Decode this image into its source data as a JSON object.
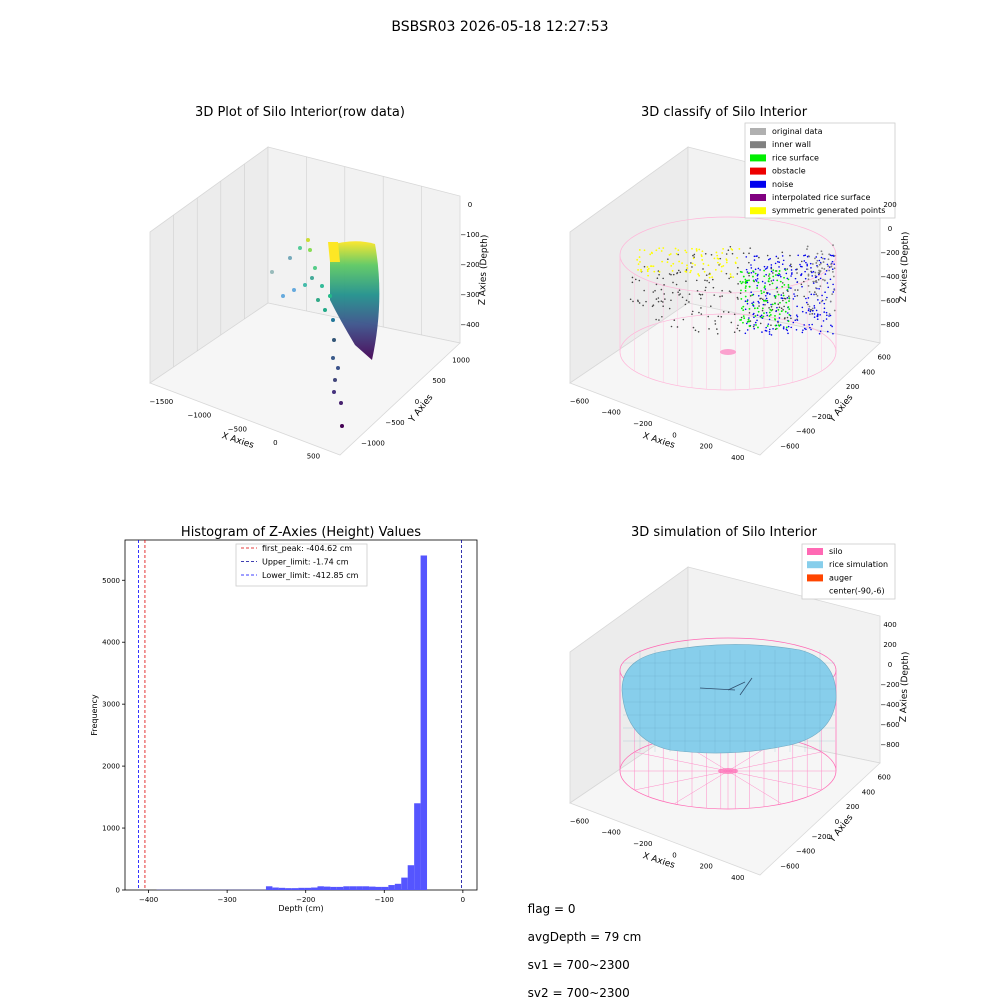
{
  "suptitle": "BSBSR03 2026-05-18 12:27:53",
  "status_bar": {
    "flag": "flag = 0",
    "avg_depth": "avgDepth = 79 cm",
    "sv1": "sv1 = 700~2300",
    "sv2": "sv2 = 700~2300"
  },
  "chart_data": [
    {
      "type": "scatter",
      "title": "3D Plot of Silo Interior(row data)",
      "xlabel": "X Axies",
      "ylabel": "Y Axies",
      "zlabel": "Z Axies (Depth)",
      "x_ticks": [
        "−1500",
        "−1000",
        "−500",
        "0",
        "500"
      ],
      "y_ticks": [
        "−1000",
        "−500",
        "0",
        "500",
        "1000"
      ],
      "z_ticks": [
        "0",
        "−100",
        "−200",
        "−300",
        "−400"
      ],
      "colormap": "viridis"
    },
    {
      "type": "scatter",
      "title": "3D classify of Silo Interior",
      "xlabel": "X Axies",
      "ylabel": "Y Axies",
      "zlabel": "Z Axies (Depth)",
      "x_ticks": [
        "−600",
        "−400",
        "−200",
        "0",
        "200",
        "400"
      ],
      "y_ticks": [
        "−600",
        "−400",
        "−200",
        "0",
        "200",
        "400",
        "600"
      ],
      "z_ticks": [
        "200",
        "0",
        "−200",
        "−400",
        "−600",
        "−800"
      ],
      "legend": [
        {
          "label": "original data",
          "color": "#b0b0b0"
        },
        {
          "label": "inner wall",
          "color": "#808080"
        },
        {
          "label": "rice surface",
          "color": "#00ee00"
        },
        {
          "label": "obstacle",
          "color": "#ee0000"
        },
        {
          "label": "noise",
          "color": "#0000ee"
        },
        {
          "label": "interpolated rice surface",
          "color": "#800080"
        },
        {
          "label": "symmetric generated points",
          "color": "#ffff00"
        }
      ]
    },
    {
      "type": "bar",
      "title": "Histogram of Z-Axies (Height) Values",
      "xlabel": "Depth (cm)",
      "ylabel": "Frequency",
      "xlim": [
        -430,
        18
      ],
      "ylim": [
        0,
        5650
      ],
      "x_ticks": [
        -400,
        -300,
        -200,
        -100,
        0
      ],
      "x_tick_labels": [
        "−400",
        "−300",
        "−200",
        "−100",
        "0"
      ],
      "y_ticks": [
        0,
        1000,
        2000,
        3000,
        4000,
        5000
      ],
      "y_tick_labels": [
        "0",
        "1000",
        "2000",
        "3000",
        "4000",
        "5000"
      ],
      "bin_width": 8.2,
      "bin_start": -390,
      "values": [
        3,
        3,
        3,
        3,
        3,
        3,
        3,
        3,
        3,
        3,
        3,
        3,
        3,
        3,
        3,
        3,
        3,
        60,
        40,
        35,
        30,
        30,
        35,
        35,
        40,
        60,
        55,
        50,
        50,
        60,
        60,
        60,
        60,
        55,
        50,
        50,
        80,
        100,
        200,
        400,
        1400,
        5400
      ],
      "bar_color": "#5555ff",
      "vlines": [
        {
          "label": "first_peak: -404.62 cm",
          "x": -404.62,
          "color": "#dd0000"
        },
        {
          "label": "Upper_limit: -1.74 cm",
          "x": -1.74,
          "color": "#000099"
        },
        {
          "label": "Lower_limit: -412.85 cm",
          "x": -412.85,
          "color": "#0000ff"
        }
      ]
    },
    {
      "type": "surface",
      "title": "3D simulation of Silo Interior",
      "xlabel": "X Axies",
      "ylabel": "Y Axies",
      "zlabel": "Z Axies (Depth)",
      "x_ticks": [
        "−600",
        "−400",
        "−200",
        "0",
        "200",
        "400"
      ],
      "y_ticks": [
        "−600",
        "−400",
        "−200",
        "0",
        "200",
        "400",
        "600"
      ],
      "z_ticks": [
        "400",
        "200",
        "0",
        "−200",
        "−400",
        "−600",
        "−800"
      ],
      "legend": [
        {
          "label": "silo",
          "color": "#ff69b4"
        },
        {
          "label": "rice simulation",
          "color": "#87ceeb"
        },
        {
          "label": "auger",
          "color": "#ff4500"
        },
        {
          "label": "center(-90,-6)",
          "color": "none"
        }
      ]
    }
  ]
}
